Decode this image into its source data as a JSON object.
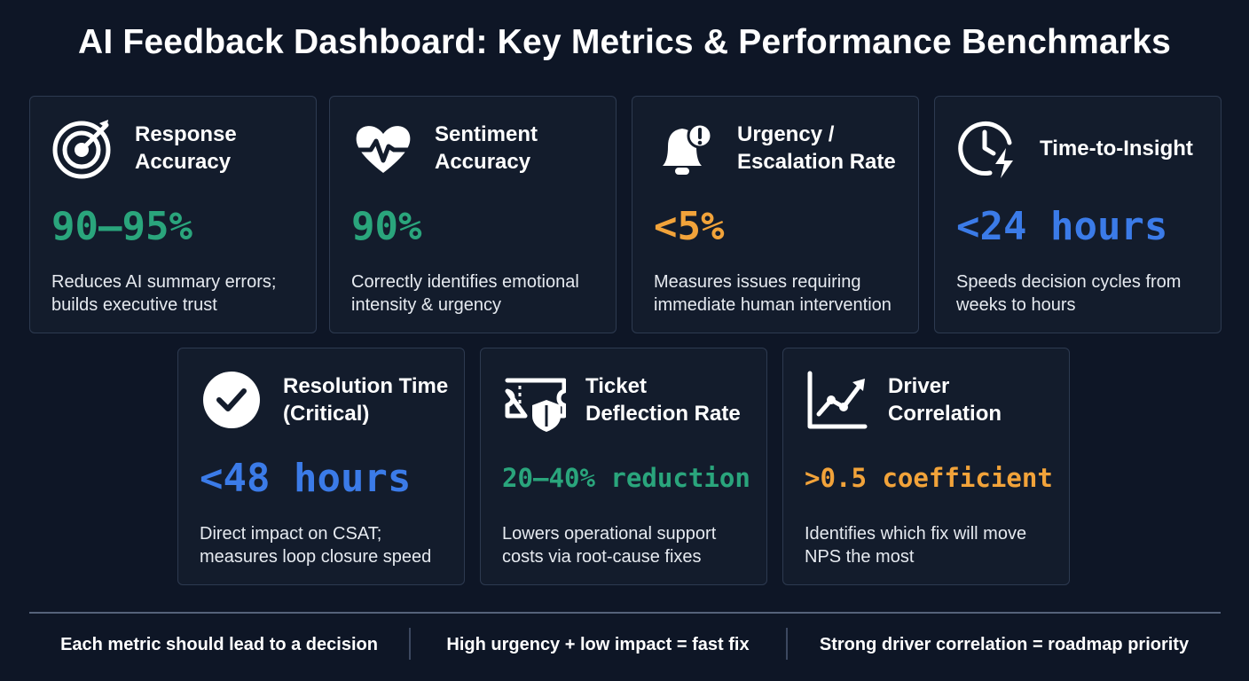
{
  "title": "AI Feedback Dashboard: Key Metrics & Performance Benchmarks",
  "cards": [
    {
      "title": "Response Accuracy",
      "value": "90–95%",
      "color": "#2aa57c",
      "description": "Reduces AI summary errors; builds executive trust"
    },
    {
      "title": "Sentiment Accuracy",
      "value": "90%",
      "color": "#2aa57c",
      "description": "Correctly identifies emotional intensity & urgency"
    },
    {
      "title": "Urgency / Escalation Rate",
      "value": "<5%",
      "color": "#f2a33a",
      "description": "Measures issues requiring immediate human intervention"
    },
    {
      "title": "Time-to-Insight",
      "value": "<24 hours",
      "color": "#3b7be8",
      "description": "Speeds decision cycles from weeks to hours"
    },
    {
      "title": "Resolution Time (Critical)",
      "value": "<48 hours",
      "color": "#3b7be8",
      "description": "Direct impact on CSAT; measures loop closure speed"
    },
    {
      "title": "Ticket Deflection Rate",
      "value": "20–40% reduction",
      "color": "#2aa57c",
      "description": "Lowers operational support costs via root-cause fixes"
    },
    {
      "title": "Driver Correlation",
      "value": ">0.5 coefficient",
      "color": "#f2a33a",
      "description": "Identifies which fix will move NPS the most"
    }
  ],
  "footer": [
    "Each metric should lead to a decision",
    "High urgency + low impact = fast fix",
    "Strong driver correlation = roadmap priority"
  ]
}
